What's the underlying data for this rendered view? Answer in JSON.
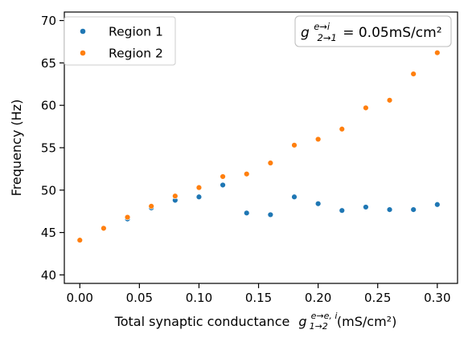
{
  "chart_data": {
    "type": "scatter",
    "title": "",
    "xlabel": "Total synaptic conductance",
    "xlabel_symbol": "g",
    "xlabel_sup": "e→e, i",
    "xlabel_sub": "1→2",
    "xlabel_units": "(mS/cm²)",
    "ylabel": "Frequency (Hz)",
    "xlim": [
      -0.013,
      0.317
    ],
    "ylim": [
      39,
      71
    ],
    "x_ticks": [
      0.0,
      0.05,
      0.1,
      0.15,
      0.2,
      0.25,
      0.3
    ],
    "x_tick_labels": [
      "0.00",
      "0.05",
      "0.10",
      "0.15",
      "0.20",
      "0.25",
      "0.30"
    ],
    "y_ticks": [
      40,
      45,
      50,
      55,
      60,
      65,
      70
    ],
    "y_tick_labels": [
      "40",
      "45",
      "50",
      "55",
      "60",
      "65",
      "70"
    ],
    "grid": false,
    "legend_position": "top-left",
    "annotation": {
      "symbol": "g",
      "sup": "e→i",
      "sub": "2→1",
      "value_text": "= 0.05mS/cm²"
    },
    "x": [
      0.0,
      0.02,
      0.04,
      0.06,
      0.08,
      0.1,
      0.12,
      0.14,
      0.16,
      0.18,
      0.2,
      0.22,
      0.24,
      0.26,
      0.28,
      0.3
    ],
    "series": [
      {
        "name": "Region 1",
        "color": "#1f77b4",
        "values": [
          44.1,
          45.5,
          46.6,
          47.9,
          48.8,
          49.2,
          50.6,
          47.3,
          47.1,
          49.2,
          48.4,
          47.6,
          48.0,
          47.7,
          47.7,
          48.3
        ]
      },
      {
        "name": "Region 2",
        "color": "#ff7f0e",
        "values": [
          44.1,
          45.5,
          46.8,
          48.1,
          49.3,
          50.3,
          51.6,
          51.9,
          53.2,
          55.3,
          56.0,
          57.2,
          59.7,
          60.6,
          63.7,
          66.2
        ]
      }
    ]
  }
}
